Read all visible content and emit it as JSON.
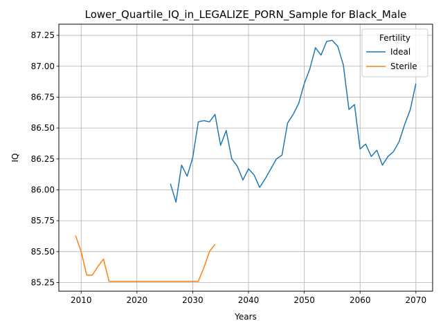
{
  "chart_data": {
    "type": "line",
    "title": "Lower_Quartile_IQ_in_LEGALIZE_PORN_Sample for Black_Male",
    "xlabel": "Years",
    "ylabel": "IQ",
    "xlim": [
      2006,
      2073
    ],
    "ylim": [
      85.18,
      87.34
    ],
    "x_ticks": [
      2010,
      2020,
      2030,
      2040,
      2050,
      2060,
      2070
    ],
    "x_tick_labels": [
      "2010",
      "2020",
      "2030",
      "2040",
      "2050",
      "2060",
      "2070"
    ],
    "y_ticks": [
      85.25,
      85.5,
      85.75,
      86.0,
      86.25,
      86.5,
      86.75,
      87.0,
      87.25
    ],
    "y_tick_labels": [
      "85.25",
      "85.50",
      "85.75",
      "86.00",
      "86.25",
      "86.50",
      "86.75",
      "87.00",
      "87.25"
    ],
    "grid": true,
    "legend": {
      "title": "Fertility",
      "placement": "top-right"
    },
    "series": [
      {
        "name": "Ideal",
        "color": "#1f77b4",
        "x": [
          2026,
          2027,
          2028,
          2029,
          2030,
          2031,
          2032,
          2033,
          2034,
          2035,
          2036,
          2037,
          2038,
          2039,
          2040,
          2041,
          2042,
          2043,
          2044,
          2045,
          2046,
          2047,
          2048,
          2049,
          2050,
          2051,
          2052,
          2053,
          2054,
          2055,
          2056,
          2057,
          2058,
          2059,
          2060,
          2061,
          2062,
          2063,
          2064,
          2065,
          2066,
          2067,
          2068,
          2069,
          2070
        ],
        "y": [
          86.05,
          85.9,
          86.2,
          86.11,
          86.26,
          86.55,
          86.56,
          86.55,
          86.61,
          86.36,
          86.48,
          86.25,
          86.19,
          86.08,
          86.17,
          86.12,
          86.02,
          86.09,
          86.17,
          86.25,
          86.28,
          86.54,
          86.61,
          86.7,
          86.86,
          86.98,
          87.15,
          87.09,
          87.2,
          87.21,
          87.16,
          87.01,
          86.65,
          86.69,
          86.33,
          86.37,
          86.27,
          86.32,
          86.2,
          86.27,
          86.31,
          86.39,
          86.53,
          86.65,
          86.86
        ]
      },
      {
        "name": "Sterile",
        "color": "#ff7f0e",
        "x": [
          2009,
          2010,
          2011,
          2012,
          2013,
          2014,
          2015,
          2016,
          2017,
          2018,
          2019,
          2020,
          2021,
          2022,
          2023,
          2024,
          2025,
          2026,
          2027,
          2028,
          2029,
          2030,
          2031,
          2032,
          2033,
          2034
        ],
        "y": [
          85.63,
          85.5,
          85.31,
          85.31,
          85.38,
          85.44,
          85.26,
          85.26,
          85.26,
          85.26,
          85.26,
          85.26,
          85.26,
          85.26,
          85.26,
          85.26,
          85.26,
          85.26,
          85.26,
          85.26,
          85.26,
          85.26,
          85.26,
          85.37,
          85.5,
          85.56
        ]
      }
    ]
  }
}
